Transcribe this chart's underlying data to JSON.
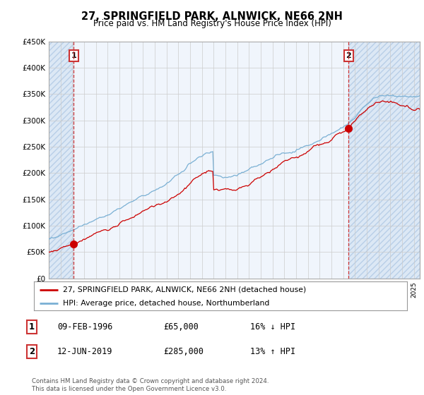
{
  "title": "27, SPRINGFIELD PARK, ALNWICK, NE66 2NH",
  "subtitle": "Price paid vs. HM Land Registry's House Price Index (HPI)",
  "sale1_date": "09-FEB-1996",
  "sale1_price": 65000,
  "sale1_hpi": "16% ↓ HPI",
  "sale2_date": "12-JUN-2019",
  "sale2_price": 285000,
  "sale2_hpi": "13% ↑ HPI",
  "legend_line1": "27, SPRINGFIELD PARK, ALNWICK, NE66 2NH (detached house)",
  "legend_line2": "HPI: Average price, detached house, Northumberland",
  "footer": "Contains HM Land Registry data © Crown copyright and database right 2024.\nThis data is licensed under the Open Government Licence v3.0.",
  "color_sale": "#cc0000",
  "color_hpi": "#7ab0d4",
  "color_vline": "#cc3333",
  "color_bg_light": "#dce8f5",
  "color_plot_bg": "#f0f5fc",
  "ylim_min": 0,
  "ylim_max": 450000,
  "xlim_min": 1994.0,
  "xlim_max": 2025.5,
  "sale1_year": 1996.12,
  "sale2_year": 2019.45
}
